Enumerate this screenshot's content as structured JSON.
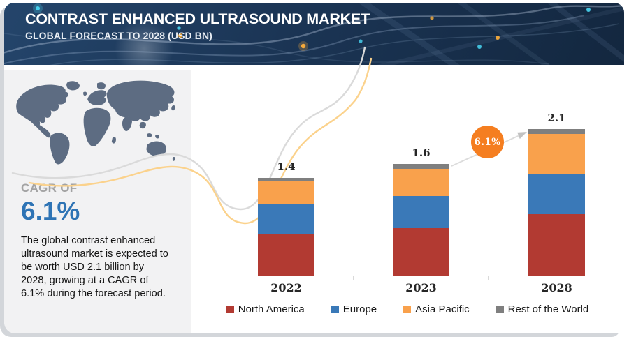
{
  "header": {
    "title": "CONTRAST ENHANCED ULTRASOUND MARKET",
    "subtitle": "GLOBAL FORECAST TO 2028 (USD BN)"
  },
  "summary": {
    "cagr_label": "CAGR OF",
    "cagr_value": "6.1%",
    "description": "The global contrast enhanced ultrasound market is expected to be worth USD 2.1 billion by 2028, growing at a CAGR of 6.1% during the forecast period."
  },
  "chart_data": {
    "type": "bar",
    "stacked": true,
    "title": "Contrast Enhanced Ultrasound Market",
    "unit": "USD BN",
    "categories": [
      "2022",
      "2023",
      "2028"
    ],
    "series": [
      {
        "name": "North America",
        "color": "#b23a32",
        "values": [
          0.6,
          0.68,
          0.88
        ]
      },
      {
        "name": "Europe",
        "color": "#3a79b8",
        "values": [
          0.42,
          0.46,
          0.58
        ]
      },
      {
        "name": "Asia Pacific",
        "color": "#f9a14c",
        "values": [
          0.33,
          0.38,
          0.57
        ]
      },
      {
        "name": "Rest of the World",
        "color": "#7f7f7f",
        "values": [
          0.05,
          0.08,
          0.07
        ]
      }
    ],
    "totals": [
      1.4,
      1.6,
      2.1
    ],
    "growth_badge": "6.1%",
    "growth_badge_color": "#f57e20",
    "legend_position": "bottom",
    "grid": false,
    "ylim": [
      0,
      2.3
    ]
  }
}
